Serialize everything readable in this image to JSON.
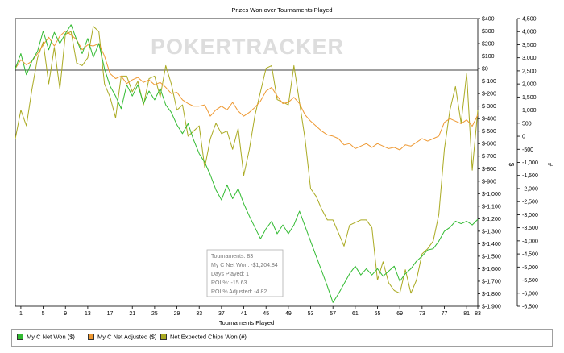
{
  "chart_data": {
    "type": "line",
    "title": "Prizes Won over Tournaments Played",
    "xlabel": "Tournaments Played",
    "ylabel_left": "",
    "ylabel_right": "$",
    "ylabel_right2": "#",
    "watermark": "POKERTRACKER",
    "xlim": [
      0,
      83
    ],
    "xticks": [
      1,
      5,
      9,
      13,
      17,
      21,
      25,
      29,
      33,
      37,
      41,
      45,
      49,
      53,
      57,
      61,
      65,
      69,
      73,
      77,
      81,
      83
    ],
    "ylim_dollar": [
      -1900,
      400
    ],
    "yticks_dollar": [
      "$400",
      "$300",
      "$200",
      "$100",
      "$0",
      "$-100",
      "$-200",
      "$-300",
      "$-400",
      "$-500",
      "$-600",
      "$-700",
      "$-800",
      "$-900",
      "$-1,000",
      "$-1,100",
      "$-1,200",
      "$-1,300",
      "$-1,400",
      "$-1,500",
      "$-1,600",
      "$-1,700",
      "$-1,800",
      "$-1,900"
    ],
    "ylim_chips": [
      -6500,
      4500
    ],
    "yticks_chips": [
      "4,500",
      "4,000",
      "3,500",
      "3,000",
      "2,500",
      "2,000",
      "1,500",
      "1,000",
      "500",
      "0",
      "-500",
      "-1,000",
      "-1,500",
      "-2,000",
      "-2,500",
      "-3,000",
      "-3,500",
      "-4,000",
      "-4,500",
      "-5,000",
      "-5,500",
      "-6,000",
      "-6,500"
    ],
    "grid": false,
    "legend_position": "bottom",
    "series": [
      {
        "name": "My C Net Won ($)",
        "color": "#33bb33",
        "axis": "dollar",
        "points": [
          [
            0,
            0
          ],
          [
            1,
            120
          ],
          [
            2,
            -50
          ],
          [
            3,
            60
          ],
          [
            4,
            140
          ],
          [
            5,
            300
          ],
          [
            6,
            150
          ],
          [
            7,
            290
          ],
          [
            8,
            200
          ],
          [
            9,
            280
          ],
          [
            10,
            350
          ],
          [
            11,
            230
          ],
          [
            12,
            120
          ],
          [
            13,
            240
          ],
          [
            14,
            90
          ],
          [
            15,
            200
          ],
          [
            16,
            0
          ],
          [
            17,
            -140
          ],
          [
            18,
            -220
          ],
          [
            19,
            -320
          ],
          [
            20,
            -130
          ],
          [
            21,
            -220
          ],
          [
            22,
            -130
          ],
          [
            23,
            -280
          ],
          [
            24,
            -180
          ],
          [
            25,
            -250
          ],
          [
            26,
            -160
          ],
          [
            27,
            -290
          ],
          [
            28,
            -350
          ],
          [
            29,
            -450
          ],
          [
            30,
            -520
          ],
          [
            31,
            -440
          ],
          [
            32,
            -570
          ],
          [
            33,
            -680
          ],
          [
            34,
            -750
          ],
          [
            35,
            -850
          ],
          [
            36,
            -970
          ],
          [
            37,
            -1050
          ],
          [
            38,
            -930
          ],
          [
            39,
            -1040
          ],
          [
            40,
            -960
          ],
          [
            41,
            -1080
          ],
          [
            42,
            -1180
          ],
          [
            43,
            -1270
          ],
          [
            44,
            -1360
          ],
          [
            45,
            -1280
          ],
          [
            46,
            -1220
          ],
          [
            47,
            -1320
          ],
          [
            48,
            -1250
          ],
          [
            49,
            -1320
          ],
          [
            50,
            -1250
          ],
          [
            51,
            -1140
          ],
          [
            52,
            -1260
          ],
          [
            53,
            -1380
          ],
          [
            54,
            -1500
          ],
          [
            55,
            -1620
          ],
          [
            56,
            -1740
          ],
          [
            57,
            -1870
          ],
          [
            58,
            -1800
          ],
          [
            59,
            -1720
          ],
          [
            60,
            -1640
          ],
          [
            61,
            -1580
          ],
          [
            62,
            -1650
          ],
          [
            63,
            -1600
          ],
          [
            64,
            -1650
          ],
          [
            65,
            -1600
          ],
          [
            66,
            -1660
          ],
          [
            67,
            -1620
          ],
          [
            68,
            -1580
          ],
          [
            69,
            -1700
          ],
          [
            70,
            -1640
          ],
          [
            71,
            -1600
          ],
          [
            72,
            -1540
          ],
          [
            73,
            -1500
          ],
          [
            74,
            -1450
          ],
          [
            75,
            -1440
          ],
          [
            76,
            -1380
          ],
          [
            77,
            -1300
          ],
          [
            78,
            -1270
          ],
          [
            79,
            -1220
          ],
          [
            80,
            -1240
          ],
          [
            81,
            -1220
          ],
          [
            82,
            -1250
          ],
          [
            83,
            -1205
          ]
        ]
      },
      {
        "name": "My C Net Adjusted ($)",
        "color": "#ee9933",
        "axis": "dollar",
        "points": [
          [
            0,
            0
          ],
          [
            1,
            70
          ],
          [
            2,
            30
          ],
          [
            3,
            60
          ],
          [
            4,
            120
          ],
          [
            5,
            190
          ],
          [
            6,
            250
          ],
          [
            7,
            180
          ],
          [
            8,
            260
          ],
          [
            9,
            300
          ],
          [
            10,
            270
          ],
          [
            11,
            230
          ],
          [
            12,
            150
          ],
          [
            13,
            190
          ],
          [
            14,
            180
          ],
          [
            15,
            200
          ],
          [
            16,
            100
          ],
          [
            17,
            -40
          ],
          [
            18,
            -80
          ],
          [
            19,
            -60
          ],
          [
            20,
            -120
          ],
          [
            21,
            -90
          ],
          [
            22,
            -70
          ],
          [
            23,
            -110
          ],
          [
            24,
            -90
          ],
          [
            25,
            -130
          ],
          [
            26,
            -110
          ],
          [
            27,
            -150
          ],
          [
            28,
            -200
          ],
          [
            29,
            -190
          ],
          [
            30,
            -250
          ],
          [
            31,
            -280
          ],
          [
            32,
            -300
          ],
          [
            33,
            -300
          ],
          [
            34,
            -290
          ],
          [
            35,
            -380
          ],
          [
            36,
            -330
          ],
          [
            37,
            -300
          ],
          [
            38,
            -330
          ],
          [
            39,
            -270
          ],
          [
            40,
            -340
          ],
          [
            41,
            -380
          ],
          [
            42,
            -350
          ],
          [
            43,
            -310
          ],
          [
            44,
            -260
          ],
          [
            45,
            -180
          ],
          [
            46,
            -150
          ],
          [
            47,
            -220
          ],
          [
            48,
            -280
          ],
          [
            49,
            -270
          ],
          [
            50,
            -230
          ],
          [
            51,
            -280
          ],
          [
            52,
            -370
          ],
          [
            53,
            -420
          ],
          [
            54,
            -460
          ],
          [
            55,
            -500
          ],
          [
            56,
            -530
          ],
          [
            57,
            -540
          ],
          [
            58,
            -560
          ],
          [
            59,
            -610
          ],
          [
            60,
            -600
          ],
          [
            61,
            -640
          ],
          [
            62,
            -620
          ],
          [
            63,
            -600
          ],
          [
            64,
            -630
          ],
          [
            65,
            -600
          ],
          [
            66,
            -620
          ],
          [
            67,
            -640
          ],
          [
            68,
            -630
          ],
          [
            69,
            -650
          ],
          [
            70,
            -610
          ],
          [
            71,
            -620
          ],
          [
            72,
            -590
          ],
          [
            73,
            -560
          ],
          [
            74,
            -580
          ],
          [
            75,
            -560
          ],
          [
            76,
            -540
          ],
          [
            77,
            -430
          ],
          [
            78,
            -400
          ],
          [
            79,
            -420
          ],
          [
            80,
            -440
          ],
          [
            81,
            -410
          ],
          [
            82,
            -460
          ],
          [
            83,
            -370
          ]
        ]
      },
      {
        "name": "Net Expected Chips Won (#)",
        "color": "#aaaa22",
        "axis": "chips",
        "points": [
          [
            0,
            -100
          ],
          [
            1,
            1000
          ],
          [
            2,
            400
          ],
          [
            3,
            1800
          ],
          [
            4,
            3000
          ],
          [
            5,
            3600
          ],
          [
            6,
            2000
          ],
          [
            7,
            3400
          ],
          [
            8,
            1800
          ],
          [
            9,
            3900
          ],
          [
            10,
            4000
          ],
          [
            11,
            2800
          ],
          [
            12,
            2700
          ],
          [
            13,
            3000
          ],
          [
            14,
            4200
          ],
          [
            15,
            4000
          ],
          [
            16,
            2000
          ],
          [
            17,
            1500
          ],
          [
            18,
            700
          ],
          [
            19,
            2300
          ],
          [
            20,
            2300
          ],
          [
            21,
            1700
          ],
          [
            22,
            2100
          ],
          [
            23,
            1200
          ],
          [
            24,
            2200
          ],
          [
            25,
            2300
          ],
          [
            26,
            1500
          ],
          [
            27,
            2700
          ],
          [
            28,
            2000
          ],
          [
            29,
            1000
          ],
          [
            30,
            1200
          ],
          [
            31,
            0
          ],
          [
            32,
            200
          ],
          [
            33,
            400
          ],
          [
            34,
            -1200
          ],
          [
            35,
            -100
          ],
          [
            36,
            500
          ],
          [
            37,
            100
          ],
          [
            38,
            200
          ],
          [
            39,
            -500
          ],
          [
            40,
            300
          ],
          [
            41,
            -1500
          ],
          [
            42,
            -500
          ],
          [
            43,
            800
          ],
          [
            44,
            1700
          ],
          [
            45,
            2600
          ],
          [
            46,
            2700
          ],
          [
            47,
            1400
          ],
          [
            48,
            1300
          ],
          [
            49,
            1200
          ],
          [
            50,
            2700
          ],
          [
            51,
            1300
          ],
          [
            52,
            -100
          ],
          [
            53,
            -2000
          ],
          [
            54,
            -2300
          ],
          [
            55,
            -2800
          ],
          [
            56,
            -3200
          ],
          [
            57,
            -3200
          ],
          [
            58,
            -3700
          ],
          [
            59,
            -4200
          ],
          [
            60,
            -3400
          ],
          [
            61,
            -3300
          ],
          [
            62,
            -3200
          ],
          [
            63,
            -3200
          ],
          [
            64,
            -3500
          ],
          [
            65,
            -5500
          ],
          [
            66,
            -4800
          ],
          [
            67,
            -5600
          ],
          [
            68,
            -5900
          ],
          [
            69,
            -6000
          ],
          [
            70,
            -5100
          ],
          [
            71,
            -6000
          ],
          [
            72,
            -5500
          ],
          [
            73,
            -4500
          ],
          [
            74,
            -4300
          ],
          [
            75,
            -4000
          ],
          [
            76,
            -3000
          ],
          [
            77,
            -500
          ],
          [
            78,
            1000
          ],
          [
            79,
            1900
          ],
          [
            80,
            500
          ],
          [
            81,
            2400
          ],
          [
            82,
            -1300
          ],
          [
            83,
            1000
          ]
        ]
      }
    ],
    "stats_box": {
      "lines": [
        "Tournaments: 83",
        "My C Net Won: -$1,204.84",
        "Days Played: 1",
        "ROI %: -15.63",
        "ROI % Adjusted: -4.82"
      ]
    }
  }
}
